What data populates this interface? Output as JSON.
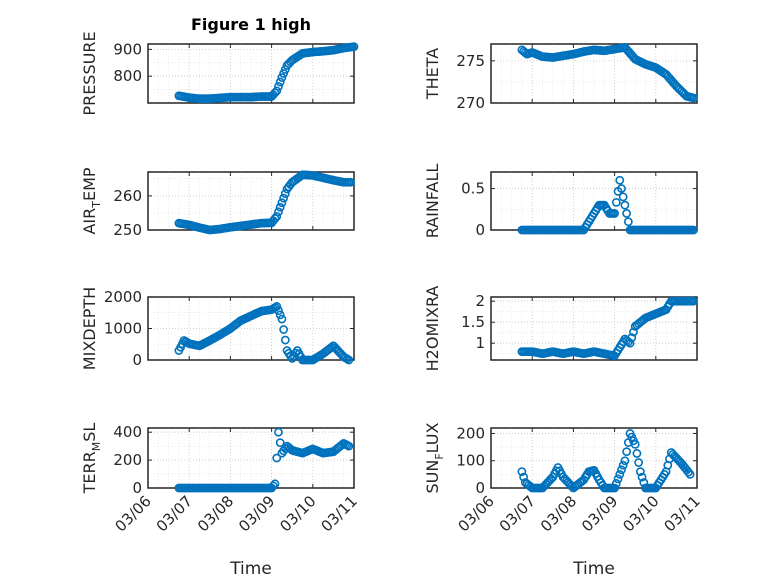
{
  "figure": {
    "title": "Figure 1 high",
    "marker_color": "#0072BD",
    "x_axis_label": "Time",
    "date_ticks": [
      "03/06",
      "03/07",
      "03/08",
      "03/09",
      "03/10",
      "03/11"
    ]
  },
  "chart_data": [
    {
      "id": "pressure",
      "type": "scatter",
      "marker": "circle",
      "ylabel_main": "PRESSURE",
      "ylabel_sub": "",
      "ylabel_tail": "",
      "xlim": [
        "03/06",
        "03/11"
      ],
      "ylim": [
        700,
        920
      ],
      "yticks": [
        800,
        900
      ],
      "ytick_labels": [
        "800",
        "900"
      ],
      "grid": true,
      "minor_grid": true,
      "points": [
        [
          "03/06 18:00",
          727
        ],
        [
          "03/07 00:00",
          720
        ],
        [
          "03/07 06:00",
          716
        ],
        [
          "03/07 12:00",
          716
        ],
        [
          "03/07 18:00",
          719
        ],
        [
          "03/08 00:00",
          722
        ],
        [
          "03/08 06:00",
          722
        ],
        [
          "03/08 12:00",
          722
        ],
        [
          "03/08 18:00",
          724
        ],
        [
          "03/09 00:00",
          724
        ],
        [
          "03/09 03:00",
          745
        ],
        [
          "03/09 06:00",
          795
        ],
        [
          "03/09 09:00",
          840
        ],
        [
          "03/09 12:00",
          860
        ],
        [
          "03/09 18:00",
          885
        ],
        [
          "03/10 00:00",
          890
        ],
        [
          "03/10 06:00",
          893
        ],
        [
          "03/10 12:00",
          897
        ],
        [
          "03/10 18:00",
          905
        ],
        [
          "03/11 00:00",
          910
        ]
      ]
    },
    {
      "id": "theta",
      "type": "scatter",
      "marker": "circle",
      "ylabel_main": "THETA",
      "ylabel_sub": "",
      "ylabel_tail": "",
      "xlim": [
        "03/06",
        "03/11"
      ],
      "ylim": [
        270,
        277
      ],
      "yticks": [
        270,
        275
      ],
      "ytick_labels": [
        "270",
        "275"
      ],
      "grid": true,
      "minor_grid": true,
      "points": [
        [
          "03/06 18:00",
          276.3
        ],
        [
          "03/06 21:00",
          275.8
        ],
        [
          "03/07 00:00",
          276.0
        ],
        [
          "03/07 06:00",
          275.5
        ],
        [
          "03/07 12:00",
          275.4
        ],
        [
          "03/07 18:00",
          275.6
        ],
        [
          "03/08 00:00",
          275.8
        ],
        [
          "03/08 06:00",
          276.1
        ],
        [
          "03/08 12:00",
          276.3
        ],
        [
          "03/08 18:00",
          276.2
        ],
        [
          "03/09 00:00",
          276.4
        ],
        [
          "03/09 06:00",
          276.6
        ],
        [
          "03/09 12:00",
          275.2
        ],
        [
          "03/09 18:00",
          274.6
        ],
        [
          "03/10 00:00",
          274.2
        ],
        [
          "03/10 06:00",
          273.4
        ],
        [
          "03/10 12:00",
          272.0
        ],
        [
          "03/10 18:00",
          270.8
        ],
        [
          "03/10 22:00",
          270.6
        ]
      ]
    },
    {
      "id": "air_temp",
      "type": "scatter",
      "marker": "circle",
      "ylabel_main": "AIR",
      "ylabel_sub": "T",
      "ylabel_tail": "EMP",
      "xlim": [
        "03/06",
        "03/11"
      ],
      "ylim": [
        250,
        267
      ],
      "yticks": [
        250,
        260
      ],
      "ytick_labels": [
        "250",
        "260"
      ],
      "grid": true,
      "minor_grid": true,
      "points": [
        [
          "03/06 18:00",
          252.0
        ],
        [
          "03/07 00:00",
          251.5
        ],
        [
          "03/07 06:00",
          250.7
        ],
        [
          "03/07 12:00",
          250.0
        ],
        [
          "03/07 18:00",
          250.3
        ],
        [
          "03/08 00:00",
          250.8
        ],
        [
          "03/08 06:00",
          251.2
        ],
        [
          "03/08 12:00",
          251.6
        ],
        [
          "03/08 18:00",
          252.0
        ],
        [
          "03/09 00:00",
          252.1
        ],
        [
          "03/09 03:00",
          254.0
        ],
        [
          "03/09 06:00",
          258.0
        ],
        [
          "03/09 09:00",
          262.0
        ],
        [
          "03/09 12:00",
          264.0
        ],
        [
          "03/09 18:00",
          266.2
        ],
        [
          "03/10 00:00",
          266.0
        ],
        [
          "03/10 06:00",
          265.3
        ],
        [
          "03/10 12:00",
          264.6
        ],
        [
          "03/10 18:00",
          264.0
        ],
        [
          "03/10 22:00",
          264.0
        ]
      ]
    },
    {
      "id": "rainfall",
      "type": "scatter",
      "marker": "circle",
      "ylabel_main": "RAINFALL",
      "ylabel_sub": "",
      "ylabel_tail": "",
      "xlim": [
        "03/06",
        "03/11"
      ],
      "ylim": [
        0,
        0.7
      ],
      "yticks": [
        0,
        0.5
      ],
      "ytick_labels": [
        "0",
        "0.5"
      ],
      "grid": true,
      "minor_grid": true,
      "points": [
        [
          "03/06 18:00",
          0
        ],
        [
          "03/07 00:00",
          0
        ],
        [
          "03/07 06:00",
          0
        ],
        [
          "03/07 12:00",
          0
        ],
        [
          "03/07 18:00",
          0
        ],
        [
          "03/08 00:00",
          0
        ],
        [
          "03/08 06:00",
          0
        ],
        [
          "03/08 12:00",
          0.2
        ],
        [
          "03/08 15:00",
          0.3
        ],
        [
          "03/08 18:00",
          0.3
        ],
        [
          "03/08 21:00",
          0.2
        ],
        [
          "03/09 00:00",
          0.2
        ],
        [
          "03/09 03:00",
          0.6
        ],
        [
          "03/09 06:00",
          0.3
        ],
        [
          "03/09 09:00",
          0
        ],
        [
          "03/09 12:00",
          0
        ],
        [
          "03/09 18:00",
          0
        ],
        [
          "03/10 00:00",
          0
        ],
        [
          "03/10 06:00",
          0
        ],
        [
          "03/10 12:00",
          0
        ],
        [
          "03/10 18:00",
          0
        ],
        [
          "03/10 22:00",
          0
        ]
      ]
    },
    {
      "id": "mixdepth",
      "type": "scatter",
      "marker": "circle",
      "ylabel_main": "MIXDEPTH",
      "ylabel_sub": "",
      "ylabel_tail": "",
      "xlim": [
        "03/06",
        "03/11"
      ],
      "ylim": [
        0,
        2000
      ],
      "yticks": [
        0,
        1000,
        2000
      ],
      "ytick_labels": [
        "0",
        "1000",
        "2000"
      ],
      "grid": true,
      "minor_grid": true,
      "points": [
        [
          "03/06 18:00",
          300
        ],
        [
          "03/06 21:00",
          620
        ],
        [
          "03/07 00:00",
          520
        ],
        [
          "03/07 06:00",
          450
        ],
        [
          "03/07 12:00",
          620
        ],
        [
          "03/07 18:00",
          800
        ],
        [
          "03/08 00:00",
          1000
        ],
        [
          "03/08 06:00",
          1250
        ],
        [
          "03/08 12:00",
          1400
        ],
        [
          "03/08 18:00",
          1550
        ],
        [
          "03/09 00:00",
          1600
        ],
        [
          "03/09 03:00",
          1700
        ],
        [
          "03/09 06:00",
          1300
        ],
        [
          "03/09 09:00",
          300
        ],
        [
          "03/09 12:00",
          50
        ],
        [
          "03/09 15:00",
          300
        ],
        [
          "03/09 18:00",
          0
        ],
        [
          "03/10 00:00",
          0
        ],
        [
          "03/10 06:00",
          200
        ],
        [
          "03/10 12:00",
          450
        ],
        [
          "03/10 18:00",
          100
        ],
        [
          "03/10 21:00",
          0
        ]
      ]
    },
    {
      "id": "h2omixra",
      "type": "scatter",
      "marker": "circle",
      "ylabel_main": "H2OMIXRA",
      "ylabel_sub": "",
      "ylabel_tail": "",
      "xlim": [
        "03/06",
        "03/11"
      ],
      "ylim": [
        0.6,
        2.1
      ],
      "yticks": [
        1,
        1.5,
        2
      ],
      "ytick_labels": [
        "1",
        "1.5",
        "2"
      ],
      "grid": true,
      "minor_grid": true,
      "points": [
        [
          "03/06 18:00",
          0.8
        ],
        [
          "03/07 00:00",
          0.8
        ],
        [
          "03/07 06:00",
          0.75
        ],
        [
          "03/07 12:00",
          0.8
        ],
        [
          "03/07 18:00",
          0.75
        ],
        [
          "03/08 00:00",
          0.8
        ],
        [
          "03/08 06:00",
          0.75
        ],
        [
          "03/08 12:00",
          0.8
        ],
        [
          "03/08 18:00",
          0.75
        ],
        [
          "03/09 00:00",
          0.7
        ],
        [
          "03/09 03:00",
          0.9
        ],
        [
          "03/09 06:00",
          1.1
        ],
        [
          "03/09 09:00",
          1.0
        ],
        [
          "03/09 12:00",
          1.4
        ],
        [
          "03/09 18:00",
          1.6
        ],
        [
          "03/10 00:00",
          1.7
        ],
        [
          "03/10 06:00",
          1.8
        ],
        [
          "03/10 09:00",
          2.0
        ],
        [
          "03/10 15:00",
          2.0
        ],
        [
          "03/10 22:00",
          2.0
        ]
      ]
    },
    {
      "id": "terr_msl",
      "type": "scatter",
      "marker": "circle",
      "ylabel_main": "TERR",
      "ylabel_sub": "M",
      "ylabel_tail": "SL",
      "xlim": [
        "03/06",
        "03/11"
      ],
      "ylim": [
        0,
        430
      ],
      "yticks": [
        0,
        200,
        400
      ],
      "ytick_labels": [
        "0",
        "200",
        "400"
      ],
      "grid": true,
      "minor_grid": true,
      "points": [
        [
          "03/06 18:00",
          0
        ],
        [
          "03/07 00:00",
          0
        ],
        [
          "03/07 06:00",
          0
        ],
        [
          "03/07 12:00",
          0
        ],
        [
          "03/07 18:00",
          0
        ],
        [
          "03/08 00:00",
          0
        ],
        [
          "03/08 06:00",
          0
        ],
        [
          "03/08 12:00",
          0
        ],
        [
          "03/08 18:00",
          0
        ],
        [
          "03/09 00:00",
          0
        ],
        [
          "03/09 02:00",
          30
        ],
        [
          "03/09 04:00",
          400
        ],
        [
          "03/09 06:00",
          250
        ],
        [
          "03/09 09:00",
          300
        ],
        [
          "03/09 12:00",
          270
        ],
        [
          "03/09 18:00",
          250
        ],
        [
          "03/10 00:00",
          280
        ],
        [
          "03/10 06:00",
          250
        ],
        [
          "03/10 12:00",
          260
        ],
        [
          "03/10 18:00",
          320
        ],
        [
          "03/10 21:00",
          300
        ]
      ]
    },
    {
      "id": "sun_flux",
      "type": "scatter",
      "marker": "circle",
      "ylabel_main": "SUN",
      "ylabel_sub": "F",
      "ylabel_tail": "LUX",
      "xlim": [
        "03/06",
        "03/11"
      ],
      "ylim": [
        0,
        220
      ],
      "yticks": [
        0,
        100,
        200
      ],
      "ytick_labels": [
        "0",
        "100",
        "200"
      ],
      "grid": true,
      "minor_grid": true,
      "points": [
        [
          "03/06 18:00",
          60
        ],
        [
          "03/06 20:00",
          20
        ],
        [
          "03/07 00:00",
          0
        ],
        [
          "03/07 06:00",
          0
        ],
        [
          "03/07 12:00",
          40
        ],
        [
          "03/07 15:00",
          75
        ],
        [
          "03/07 18:00",
          40
        ],
        [
          "03/08 00:00",
          0
        ],
        [
          "03/08 06:00",
          30
        ],
        [
          "03/08 09:00",
          60
        ],
        [
          "03/08 12:00",
          65
        ],
        [
          "03/08 15:00",
          30
        ],
        [
          "03/08 18:00",
          0
        ],
        [
          "03/09 00:00",
          0
        ],
        [
          "03/09 06:00",
          100
        ],
        [
          "03/09 09:00",
          200
        ],
        [
          "03/09 12:00",
          160
        ],
        [
          "03/09 15:00",
          60
        ],
        [
          "03/09 18:00",
          0
        ],
        [
          "03/10 00:00",
          0
        ],
        [
          "03/10 06:00",
          60
        ],
        [
          "03/10 09:00",
          130
        ],
        [
          "03/10 15:00",
          90
        ],
        [
          "03/10 20:00",
          50
        ]
      ]
    }
  ]
}
